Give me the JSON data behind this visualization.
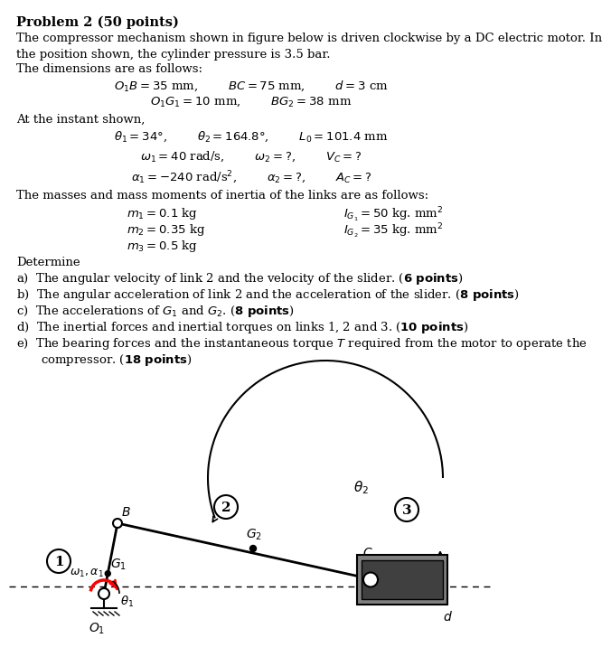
{
  "bg_color": "#ffffff",
  "title_text": "Problem 2 (50 points)",
  "para1": "The compressor mechanism shown in figure below is driven clockwise by a DC electric motor. In\nthe position shown, the cylinder pressure is 3.5 bar.",
  "para2": "The dimensions are as follows:",
  "dim_line1": "$O_1B = 35$ mm,        $BC = 75$ mm,        $d = 3$ cm",
  "dim_line2": "$O_1G_1 = 10$ mm,        $BG_2 = 38$ mm",
  "para3": "At the instant shown,",
  "inst_line1": "$\\theta_1 = 34°$,        $\\theta_2 = 164.8°$,        $L_0 = 101.4$ mm",
  "inst_line2": "$\\omega_1 = 40$ rad/s,        $\\omega_2 =?$,        $V_C =?$",
  "inst_line3": "$\\alpha_1 = -240$ rad/s$^2$,        $\\alpha_2 =?$,        $A_C =?$",
  "para4": "The masses and mass moments of inertia of the links are as follows:",
  "mass_line1a": "$m_1 = 0.1$ kg",
  "mass_line1b": "$I_{G_1} = 50$ kg. mm$^2$",
  "mass_line2a": "$m_2 = 0.35$ kg",
  "mass_line2b": "$I_{G_2} = 35$ kg. mm$^2$",
  "mass_line3a": "$m_3 = 0.5$ kg",
  "determine": "Determine",
  "items": [
    "a)  The angular velocity of link 2 and the velocity of the slider. (**6 points**)",
    "b)  The angular acceleration of link 2 and the acceleration of the slider. (**8 points**)",
    "c)  The accelerations of $G_1$ and $G_2$. (**8 points**)",
    "d)  The inertial forces and inertial torques on links 1, 2 and 3. (**10 points**)",
    "e)  The bearing forces and the instantaneous torque $T$ required from the motor to operate the\n     compressor. (**18 points**)"
  ]
}
